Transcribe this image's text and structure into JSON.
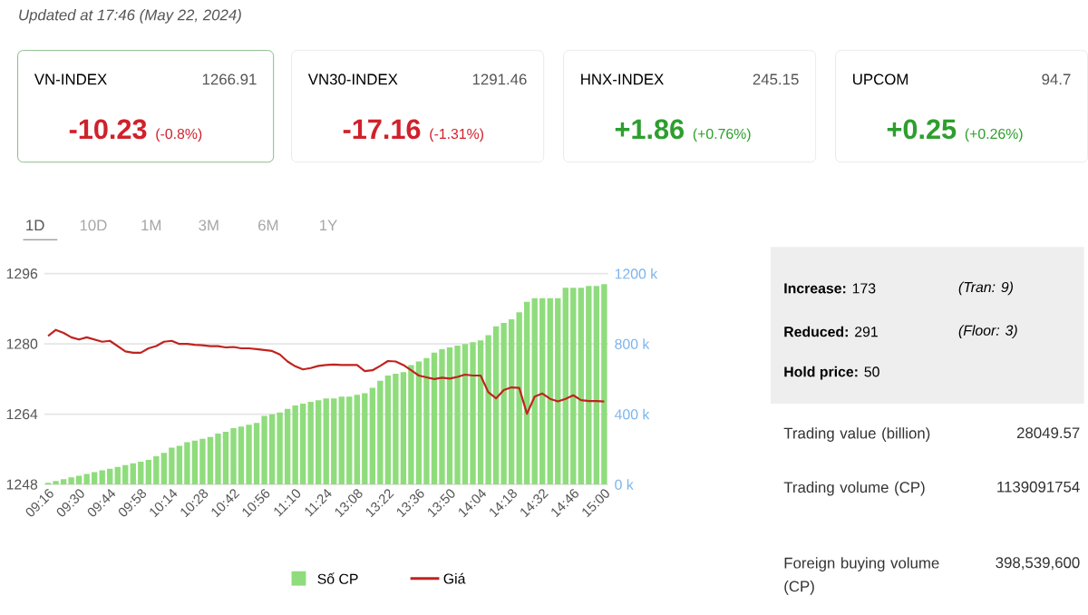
{
  "chart_data": {
    "type": "bar",
    "categories": [
      "09:16",
      null,
      null,
      null,
      "09:30",
      null,
      null,
      null,
      "09:44",
      null,
      null,
      null,
      "09:58",
      null,
      null,
      null,
      "10:14",
      null,
      null,
      null,
      "10:28",
      null,
      null,
      null,
      "10:42",
      null,
      null,
      null,
      "10:56",
      null,
      null,
      null,
      "11:10",
      null,
      null,
      null,
      "11:24",
      null,
      null,
      null,
      "13:08",
      null,
      null,
      null,
      "13:22",
      null,
      null,
      null,
      "13:36",
      null,
      null,
      null,
      "13:50",
      null,
      null,
      null,
      "14:04",
      null,
      null,
      null,
      "14:18",
      null,
      null,
      null,
      "14:32",
      null,
      null,
      null,
      "14:46",
      null,
      null,
      null,
      "15:00"
    ],
    "series": [
      {
        "name": "Số CP",
        "color": "#8fdc7c",
        "axis": "y2",
        "values": [
          10,
          20,
          30,
          40,
          50,
          60,
          70,
          80,
          90,
          100,
          110,
          120,
          130,
          140,
          160,
          180,
          210,
          220,
          240,
          250,
          260,
          270,
          290,
          300,
          320,
          330,
          340,
          350,
          390,
          400,
          410,
          430,
          450,
          460,
          470,
          480,
          490,
          490,
          500,
          500,
          510,
          520,
          550,
          590,
          620,
          630,
          640,
          680,
          700,
          720,
          750,
          770,
          780,
          790,
          800,
          810,
          820,
          850,
          900,
          920,
          940,
          980,
          1040,
          1060,
          1060,
          1060,
          1060,
          1120,
          1120,
          1120,
          1130,
          1130,
          1140
        ]
      },
      {
        "name": "Giá",
        "type": "line",
        "color": "#c0231f",
        "values": [
          1281.8,
          1283.2,
          1282.5,
          1281.5,
          1281,
          1281.5,
          1281,
          1280.5,
          1280.7,
          1279.5,
          1278.3,
          1278,
          1278,
          1279,
          1279.5,
          1280.5,
          1280.7,
          1280,
          1280,
          1279.8,
          1279.7,
          1279.5,
          1279.5,
          1279.2,
          1279.3,
          1279,
          1279,
          1278.8,
          1278.6,
          1278.4,
          1277.6,
          1276,
          1274.9,
          1274.2,
          1274.5,
          1275,
          1275.2,
          1275.3,
          1275.2,
          1275.2,
          1275.2,
          1273.8,
          1274,
          1275,
          1276.1,
          1276,
          1275.2,
          1274,
          1272.8,
          1272.4,
          1272,
          1272.3,
          1272.1,
          1272.5,
          1273,
          1272.8,
          1272.8,
          1269,
          1267.6,
          1269.5,
          1270.1,
          1270,
          1264.1,
          1268,
          1268.7,
          1267.5,
          1266.9,
          1267.5,
          1268.3,
          1267.2,
          1267,
          1267,
          1266.9
        ]
      }
    ],
    "ylim": [
      1248,
      1296
    ],
    "yticks": [
      1248,
      1264,
      1280,
      1296
    ],
    "y2lim": [
      0,
      1200
    ],
    "y2ticks": [
      {
        "value": 0,
        "label": "0 k"
      },
      {
        "value": 400,
        "label": "400 k"
      },
      {
        "value": 800,
        "label": "800 k"
      },
      {
        "value": 1200,
        "label": "1200 k"
      }
    ],
    "grid": "y",
    "legend": "bottom",
    "annotations": [
      "Updated at 17:46 (May 22, 2024)",
      "VN-INDEX",
      "1266.91",
      "-10.23",
      "(-0.8%)",
      "VN30-INDEX",
      "1291.46",
      "-17.16",
      "(-1.31%)",
      "HNX-INDEX",
      "245.15",
      "+1.86",
      "(+0.76%)",
      "UPCOM",
      "94.7",
      "+0.25",
      "(+0.26%)",
      "1D",
      "10D",
      "1M",
      "3M",
      "6M",
      "1Y",
      "**Increase:** 173",
      "(Tran: 9)",
      "**Reduced:** 291",
      "(Floor: 3)",
      "**Hold price:** 50",
      "Trading value (billion)",
      "28049.57",
      "Trading volume (CP)",
      "1139091754",
      "Foreign buying volume (CP)",
      "398,539,600"
    ]
  }
}
